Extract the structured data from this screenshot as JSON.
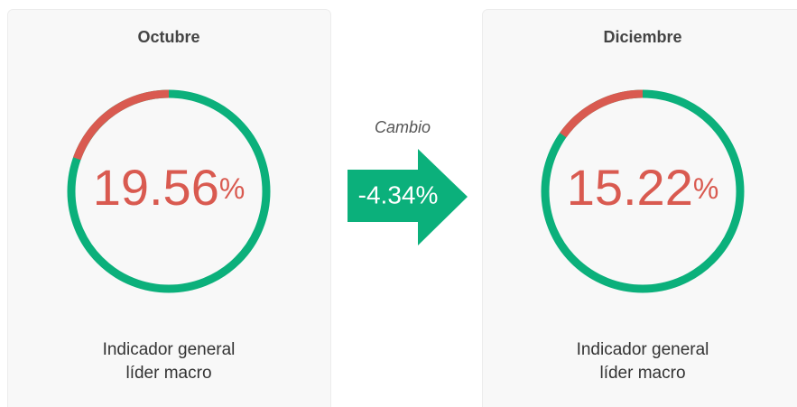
{
  "cards": [
    {
      "title": "Octubre",
      "value": 19.56,
      "unit": "%",
      "caption": [
        "Indicador general",
        "líder macro"
      ]
    },
    {
      "title": "Diciembre",
      "value": 15.22,
      "unit": "%",
      "caption": [
        "Indicador general",
        "líder macro"
      ]
    }
  ],
  "change": {
    "label": "Cambio",
    "value_label": "-4.34%"
  },
  "colors": {
    "ring": "#0bb07b",
    "arc": "#d95a50",
    "arrow": "#0bb07b"
  }
}
